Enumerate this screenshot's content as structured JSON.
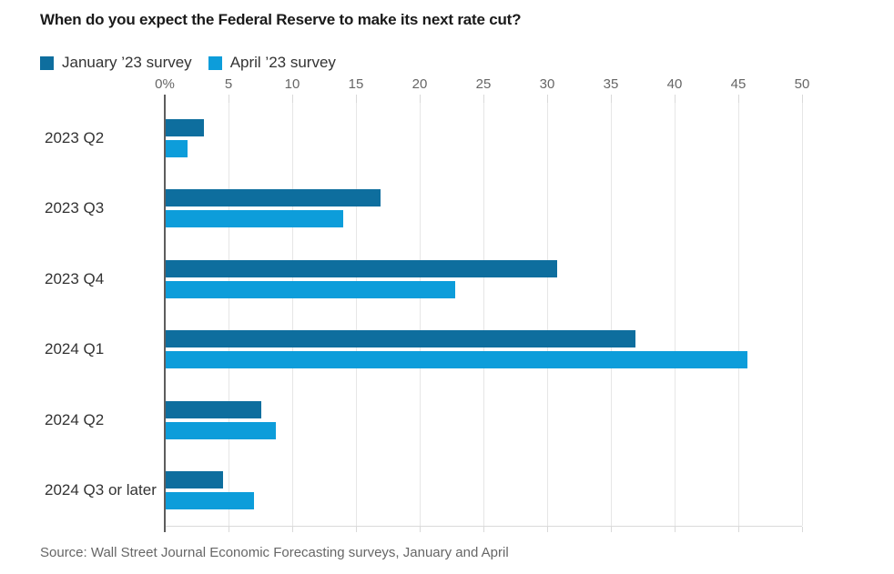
{
  "title": "When do you expect the Federal Reserve to make its next rate cut?",
  "source": "Source: Wall Street Journal Economic Forecasting surveys, January and April",
  "colors": {
    "january_series": "#0e6e9e",
    "april_series": "#0d9dda",
    "gridline": "#e6e6e6",
    "axis_line": "#5d5d5d",
    "axis_label": "#666666",
    "text": "#333333"
  },
  "chart_data": {
    "type": "bar",
    "orientation": "horizontal",
    "title": "When do you expect the Federal Reserve to make its next rate cut?",
    "categories": [
      "2023 Q2",
      "2023 Q3",
      "2023 Q4",
      "2024 Q1",
      "2024 Q2",
      "2024 Q3 or later"
    ],
    "series": [
      {
        "name": "January ’23 survey",
        "color": "#0e6e9e",
        "values": [
          3.1,
          16.9,
          30.8,
          36.9,
          7.6,
          4.6
        ]
      },
      {
        "name": "April ’23 survey",
        "color": "#0d9dda",
        "values": [
          1.8,
          14.0,
          22.8,
          45.7,
          8.7,
          7.0
        ]
      }
    ],
    "xlim": [
      0,
      50
    ],
    "x_tick_step": 5,
    "x_tick_labels": [
      "0%",
      "5",
      "10",
      "15",
      "20",
      "25",
      "30",
      "35",
      "40",
      "45",
      "50"
    ],
    "xlabel": "",
    "ylabel": "",
    "grid": true,
    "legend_position": "top-left"
  }
}
